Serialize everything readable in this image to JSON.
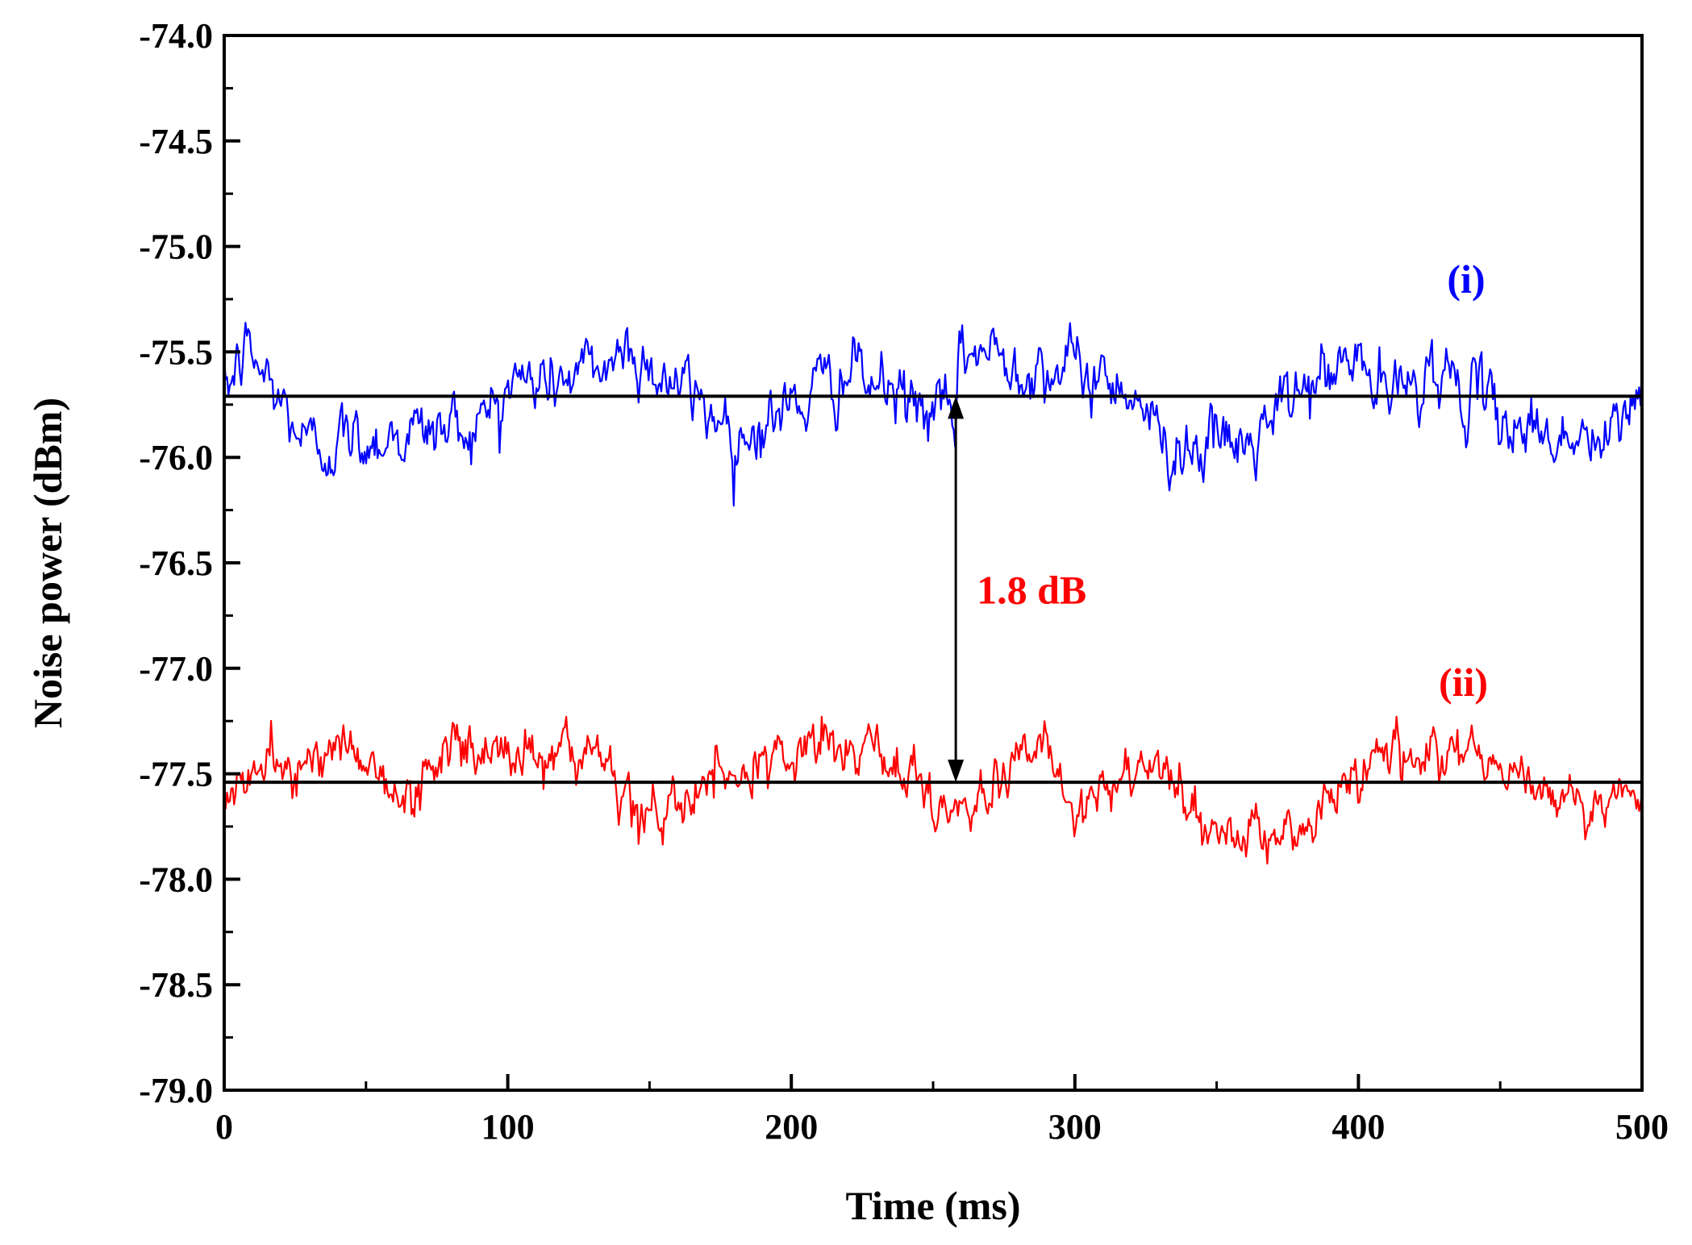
{
  "chart_data": {
    "type": "line",
    "title": "",
    "xlabel": "Time (ms)",
    "ylabel": "Noise power (dBm)",
    "xlim": [
      0,
      500
    ],
    "ylim": [
      -79.0,
      -74.0
    ],
    "x_ticks": [
      0,
      100,
      200,
      300,
      400,
      500
    ],
    "x_tick_labels": [
      "0",
      "100",
      "200",
      "300",
      "400",
      "500"
    ],
    "y_ticks": [
      -74.0,
      -74.5,
      -75.0,
      -75.5,
      -76.0,
      -76.5,
      -77.0,
      -77.5,
      -78.0,
      -78.5,
      -79.0
    ],
    "y_tick_labels": [
      "-74.0",
      "-74.5",
      "-75.0",
      "-75.5",
      "-76.0",
      "-76.5",
      "-77.0",
      "-77.5",
      "-78.0",
      "-78.5",
      "-79.0"
    ],
    "grid": false,
    "series": [
      {
        "name": "(i)",
        "label": "(i)",
        "color": "#0000ff",
        "mean": -75.71,
        "noise_std": 0.18,
        "samples": 1000,
        "x": [
          0,
          8,
          30,
          40,
          90,
          100,
          120,
          130,
          142,
          184,
          200,
          220,
          258,
          260,
          320,
          330,
          362,
          380,
          400,
          410,
          426,
          450,
          470,
          488,
          500
        ],
        "y": [
          -75.7,
          -75.3,
          -76.15,
          -76.1,
          -75.95,
          -75.6,
          -75.55,
          -75.5,
          -75.3,
          -76.05,
          -75.8,
          -75.5,
          -75.95,
          -75.3,
          -75.6,
          -76.1,
          -76.15,
          -75.65,
          -75.4,
          -75.75,
          -75.45,
          -75.9,
          -76.05,
          -76.15,
          -75.6
        ]
      },
      {
        "name": "(ii)",
        "label": "(ii)",
        "color": "#ff0000",
        "mean": -77.54,
        "noise_std": 0.15,
        "samples": 1000,
        "x": [
          0,
          20,
          50,
          62,
          78,
          120,
          150,
          170,
          205,
          230,
          260,
          290,
          300,
          330,
          342,
          376,
          410,
          440,
          470,
          500
        ],
        "y": [
          -77.6,
          -77.4,
          -77.25,
          -77.8,
          -77.25,
          -77.3,
          -77.85,
          -77.6,
          -77.25,
          -77.3,
          -77.8,
          -77.25,
          -77.85,
          -77.35,
          -77.95,
          -78.0,
          -77.25,
          -77.3,
          -77.65,
          -77.7
        ]
      }
    ],
    "reference_lines": [
      {
        "name": "mean-i",
        "y": -75.71,
        "color": "#000000"
      },
      {
        "name": "mean-ii",
        "y": -77.54,
        "color": "#000000"
      }
    ],
    "annotations": [
      {
        "name": "difference",
        "text": "1.8 dB",
        "color": "#ff0000",
        "x": 258,
        "y_from": -75.71,
        "y_to": -77.54
      }
    ]
  }
}
